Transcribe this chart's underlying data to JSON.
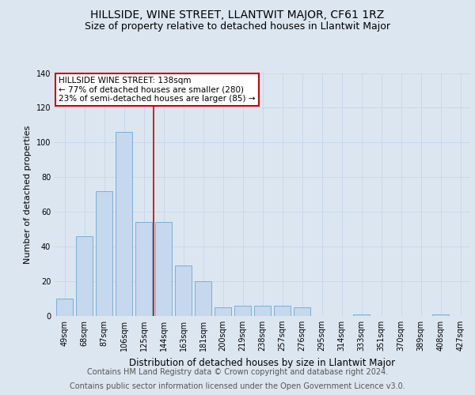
{
  "title": "HILLSIDE, WINE STREET, LLANTWIT MAJOR, CF61 1RZ",
  "subtitle": "Size of property relative to detached houses in Llantwit Major",
  "xlabel": "Distribution of detached houses by size in Llantwit Major",
  "ylabel": "Number of detached properties",
  "categories": [
    "49sqm",
    "68sqm",
    "87sqm",
    "106sqm",
    "125sqm",
    "144sqm",
    "163sqm",
    "181sqm",
    "200sqm",
    "219sqm",
    "238sqm",
    "257sqm",
    "276sqm",
    "295sqm",
    "314sqm",
    "333sqm",
    "351sqm",
    "370sqm",
    "389sqm",
    "408sqm",
    "427sqm"
  ],
  "values": [
    10,
    46,
    72,
    106,
    54,
    54,
    29,
    20,
    5,
    6,
    6,
    6,
    5,
    0,
    0,
    1,
    0,
    0,
    0,
    1,
    0
  ],
  "bar_color": "#c5d8ee",
  "bar_edge_color": "#7bafd4",
  "grid_color": "#c8d8ea",
  "background_color": "#dce6f1",
  "plot_bg_color": "#dce6f1",
  "vline_x_index": 5,
  "vline_color": "#cc0000",
  "annotation_text": "HILLSIDE WINE STREET: 138sqm\n← 77% of detached houses are smaller (280)\n23% of semi-detached houses are larger (85) →",
  "annotation_box_color": "#ffffff",
  "annotation_box_edge": "#cc0000",
  "ylim": [
    0,
    140
  ],
  "yticks": [
    0,
    20,
    40,
    60,
    80,
    100,
    120,
    140
  ],
  "footer_line1": "Contains HM Land Registry data © Crown copyright and database right 2024.",
  "footer_line2": "Contains public sector information licensed under the Open Government Licence v3.0.",
  "title_fontsize": 10,
  "subtitle_fontsize": 9,
  "footer_fontsize": 7,
  "axis_label_fontsize": 8,
  "tick_fontsize": 7,
  "annotation_fontsize": 7.5
}
